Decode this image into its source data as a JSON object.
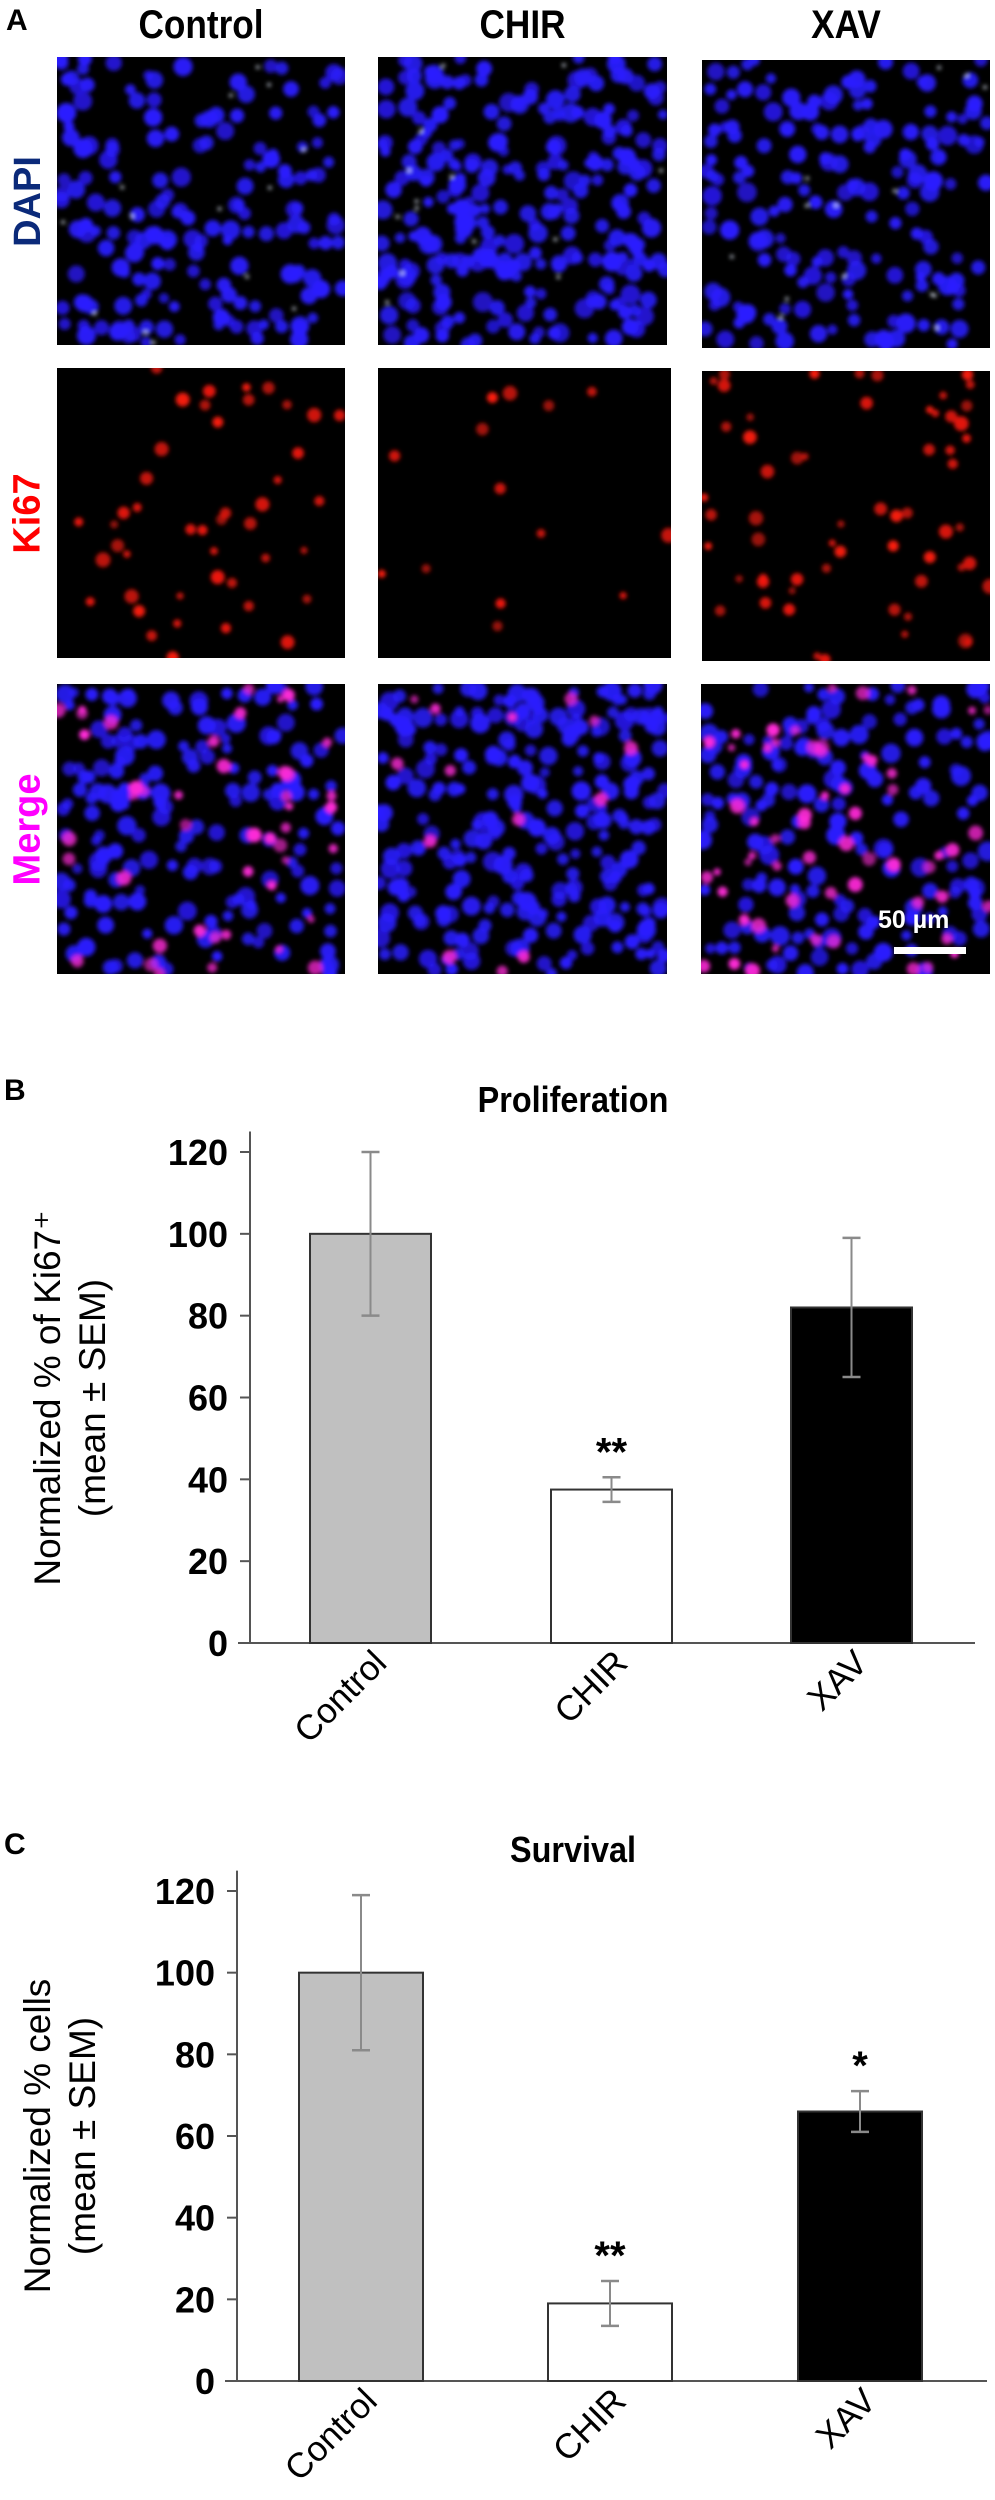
{
  "figure": {
    "panelA": {
      "letter": "A",
      "columns": [
        "Control",
        "CHIR",
        "XAV"
      ],
      "rows": [
        {
          "label": "DAPI",
          "color": "#0b2a7a"
        },
        {
          "label": "Ki67",
          "color": "#ff0000"
        },
        {
          "label": "Merge",
          "color": "#ff00ff"
        }
      ],
      "scale_bar": "50 µm"
    },
    "panelB": {
      "letter": "B"
    },
    "panelC": {
      "letter": "C"
    }
  },
  "chart_data": [
    {
      "type": "bar",
      "panel": "B",
      "title": "Proliferation",
      "ylabel_line1": "Normalized % of Ki67⁺",
      "ylabel_line2": "(mean ± SEM)",
      "xlabel": "",
      "categories": [
        "Control",
        "CHIR",
        "XAV"
      ],
      "values": [
        100,
        37.5,
        82
      ],
      "error_low": [
        80,
        34.5,
        65
      ],
      "error_high": [
        120,
        40.5,
        99
      ],
      "significance": [
        "",
        "**",
        ""
      ],
      "bar_colors": [
        "#c0c0c0",
        "#ffffff",
        "#000000"
      ],
      "yticks": [
        0,
        20,
        40,
        60,
        80,
        100,
        120
      ],
      "ylim": [
        0,
        125
      ],
      "grid": false,
      "legend": "none"
    },
    {
      "type": "bar",
      "panel": "C",
      "title": "Survival",
      "ylabel_line1": "Normalized % cells",
      "ylabel_line2": "(mean ± SEM)",
      "xlabel": "",
      "categories": [
        "Control",
        "CHIR",
        "XAV"
      ],
      "values": [
        100,
        19,
        66
      ],
      "error_low": [
        81,
        13.5,
        61
      ],
      "error_high": [
        119,
        24.5,
        71
      ],
      "significance": [
        "",
        "**",
        "*"
      ],
      "bar_colors": [
        "#c0c0c0",
        "#ffffff",
        "#000000"
      ],
      "yticks": [
        0,
        20,
        40,
        60,
        80,
        100,
        120
      ],
      "ylim": [
        0,
        125
      ],
      "grid": false,
      "legend": "none"
    }
  ]
}
